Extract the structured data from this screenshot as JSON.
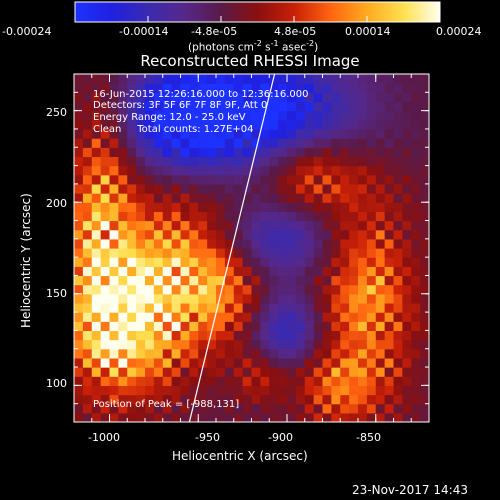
{
  "chart_data": {
    "type": "heatmap",
    "title": "Reconstructed RHESSI Image",
    "xlabel": "Heliocentric X (arcsec)",
    "ylabel": "Heliocentric Y (arcsec)",
    "xlim": [
      -1020,
      -820
    ],
    "ylim": [
      80,
      270
    ],
    "x_ticks": [
      -1000,
      -950,
      -900,
      -850
    ],
    "y_ticks": [
      100,
      150,
      200,
      250
    ],
    "colorbar": {
      "range": [
        -0.00024,
        0.00024
      ],
      "tick_labels": [
        "-0.00024",
        "-0.00014",
        "-4.8e-05",
        "4.8e-05",
        "0.00014",
        "0.00024"
      ],
      "unit_label_main": "(photons cm",
      "unit_label_exp1": "-2",
      "unit_label_mid": " s",
      "unit_label_exp2": "-1",
      "unit_label_tail": " asec",
      "unit_label_exp3": "-2",
      "unit_label_end": ")",
      "colors": [
        "#1e32ff",
        "#2020e0",
        "#3a2ab0",
        "#55288a",
        "#5a1a48",
        "#8a1010",
        "#c82008",
        "#ff6410",
        "#ffaa20",
        "#ffe050",
        "#fffff0"
      ]
    },
    "annotations": [
      "16-Jun-2015 12:26:16.000 to 12:36:16.000",
      "Detectors: 3F 5F 6F 7F 8F 9F, Att 0",
      "Energy Range: 12.0 - 25.0 keV",
      "Clean     Total counts: 1.27E+04"
    ],
    "peak_label": "Position of Peak = [-988,131]",
    "peak": {
      "x": -988,
      "y": 131
    },
    "limb_line": {
      "x1": -955,
      "y1": 80,
      "x2": -907,
      "y2": 270
    },
    "sources": [
      {
        "x": -990,
        "y": 132,
        "amp": 1.0,
        "sx": 22,
        "sy": 25
      },
      {
        "x": -965,
        "y": 165,
        "amp": 0.75,
        "sx": 25,
        "sy": 28
      },
      {
        "x": -1005,
        "y": 185,
        "amp": 0.8,
        "sx": 12,
        "sy": 45
      },
      {
        "x": -935,
        "y": 150,
        "amp": 0.45,
        "sx": 15,
        "sy": 20
      },
      {
        "x": -855,
        "y": 150,
        "amp": 0.75,
        "sx": 18,
        "sy": 35
      },
      {
        "x": -870,
        "y": 100,
        "amp": 0.5,
        "sx": 18,
        "sy": 15
      },
      {
        "x": -885,
        "y": 215,
        "amp": 0.55,
        "sx": 20,
        "sy": 15
      },
      {
        "x": -915,
        "y": 105,
        "amp": 0.35,
        "sx": 10,
        "sy": 10
      },
      {
        "x": -920,
        "y": 250,
        "amp": -1.0,
        "sx": 40,
        "sy": 22
      },
      {
        "x": -960,
        "y": 245,
        "amp": -0.7,
        "sx": 20,
        "sy": 18
      },
      {
        "x": -900,
        "y": 130,
        "amp": -0.6,
        "sx": 15,
        "sy": 15
      },
      {
        "x": -905,
        "y": 180,
        "amp": -0.55,
        "sx": 25,
        "sy": 15
      }
    ]
  },
  "footer": {
    "timestamp": "23-Nov-2017 14:43"
  }
}
